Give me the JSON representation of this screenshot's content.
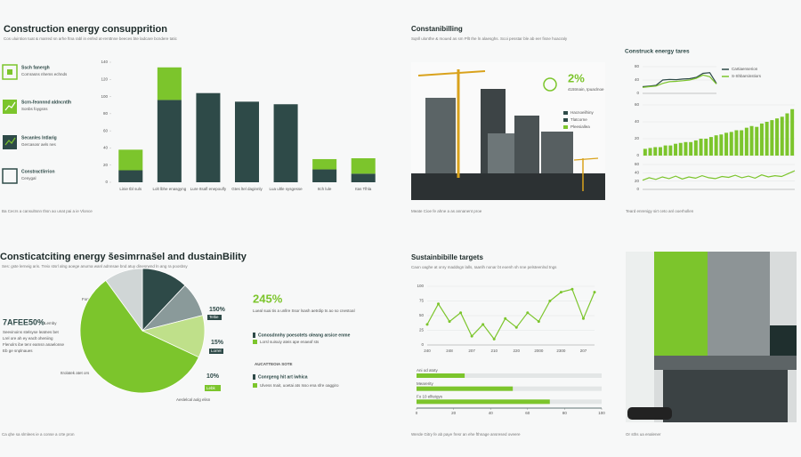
{
  "top_left": {
    "title": "Construction energy consupprition",
    "subtitle": "Cos uluintion tuat & marred sn arhe ftna rabl in enfed at-renttnne beeces bte ladcare bcndere tatic",
    "items": [
      {
        "title": "Ssch fanergh",
        "text": "Cornrasns nhems echnds"
      },
      {
        "title": "Scrn-feonnnd aldncntlh",
        "text": "Sonbs foygsns"
      },
      {
        "title": "Secanles Intlarig",
        "text": "Gercasosr aels nes"
      },
      {
        "title": "Constractlirrion",
        "text": "Cenygal"
      }
    ],
    "caption": "Ba Cecrs a cansultsnn thsn ao unat pai a ie Vlonce"
  },
  "top_middle": {
    "title": "Constanibilling",
    "subtitle": "Sqnll ulonthe & moued as sm Pllt Ihe ln alaesghs. Scoi pesstar ble ab eer fisne hoacraly",
    "stat": "2%",
    "stat_text": "415tmain, Ipuaclnoe",
    "legend": [
      "Hacnoeilhiny",
      "Tlatcorne",
      "Pleesiallea"
    ],
    "caption": "Meate Cioe fe ahne a as annanent proe"
  },
  "top_right": {
    "title": "Construck energy tares",
    "caption": "Teard enrenigy sirt ceto anl ooerhollen"
  },
  "middle_left": {
    "title": "Consticatciting energy šesimrnašel and dustainBility",
    "subtitle": "Ses: gste lerneig aris. Treix stsrl alng aoege anurna wanl adnnsae bnd atuy dinesrwnd ln ang ra poosbsy",
    "stat": "7AFEE50%",
    "stat_label": "Lemby",
    "notes": [
      "Seevinoins stelsyse leatnes bet",
      "Lrel ore ah ey eaclt oheniing",
      "Flenolrs ibe tenr eamsn anaelonse",
      "Eb ge snplnaues"
    ],
    "slice_labels": [
      "Bfternaclogy",
      "Fonuiee-brsi",
      "Secanet ats",
      "Itrolatek atet ors",
      "Aeslelcal aolg elisn"
    ],
    "side_stats": [
      "150%",
      "15%",
      "10%"
    ],
    "side_texts": [
      "Teltie",
      "Lorrel",
      "Lebk"
    ],
    "highlight": "245%",
    "highlight_text": "Lueal suai tis a unllre Ssor lsash aetrdip ts ao so cnestoal",
    "list": [
      {
        "title": "Conosdnnhy poesotets oleang arsice enme",
        "text": "Lorsl suisuiy ateis ape enaeaf sts"
      },
      {
        "title": "Conrgeng hit art iwhica",
        "text": "Ulvess Inait, uoetai ats Isso ena sfre oaggiro"
      }
    ],
    "subhead": "AUCATTEOIA SOTE",
    "caption": "Ca qhe sa slmlees ie a conse a crte pron"
  },
  "middle_right": {
    "title": "Sustainbibille targets",
    "subtitle": "Caon oaghe at onry maddsgn lalls, Iaanlh nonar bt eoenh sh nne pelsteenlnd tngs",
    "caption": "Werde Gitry fe ab paye fresr an ehe fthnage ansresed oveere"
  },
  "bottom_right": {
    "caption": "Or sths ua enalener"
  },
  "chart_data": [
    {
      "type": "bar",
      "stacked": true,
      "categories": [
        "Linie tbl suls",
        "Lolt lbhe enasgyng",
        "Lure Itsafl enepoulfy",
        "Gtes ltel daginnly",
        "Lua ultle sysgesse",
        "Itch lule",
        "Itas Tlhla"
      ],
      "series": [
        {
          "color": "#2e4a48",
          "values": [
            14,
            96,
            104,
            94,
            91,
            15,
            10
          ]
        },
        {
          "color": "#7cc52c",
          "values": [
            24,
            38,
            0,
            0,
            0,
            12,
            18
          ]
        }
      ],
      "ylim": [
        0,
        140
      ],
      "yticks": [
        0,
        20,
        40,
        60,
        80,
        100,
        120,
        140
      ],
      "grid": false
    },
    {
      "type": "line",
      "categories": [
        null,
        null,
        null,
        null,
        null,
        null,
        null,
        null,
        null,
        null,
        null,
        null
      ],
      "series": [
        {
          "name": "Cartiaenserion",
          "color": "#2e4a48",
          "values": [
            20,
            22,
            24,
            40,
            42,
            41,
            43,
            44,
            48,
            60,
            62,
            30
          ]
        },
        {
          "name": "S-Shbarsinstiors",
          "color": "#7cc52c",
          "values": [
            18,
            20,
            22,
            30,
            35,
            36,
            38,
            40,
            45,
            55,
            50,
            28
          ]
        }
      ],
      "ylim": [
        0,
        80
      ],
      "yticks": [
        0,
        40,
        80
      ],
      "grid": true,
      "legend": "right"
    },
    {
      "type": "bar",
      "stacked": false,
      "categories": [
        null,
        null,
        null,
        null,
        null,
        null,
        null,
        null,
        null,
        null,
        null,
        null,
        null,
        null,
        null,
        null,
        null,
        null,
        null,
        null,
        null,
        null,
        null,
        null,
        null,
        null,
        null,
        null,
        null,
        null
      ],
      "series": [
        {
          "color": "#7cc52c",
          "values": [
            8,
            9,
            10,
            10,
            12,
            12,
            14,
            15,
            16,
            16,
            18,
            20,
            20,
            22,
            24,
            25,
            27,
            28,
            30,
            30,
            33,
            35,
            34,
            38,
            40,
            42,
            44,
            46,
            50,
            55
          ]
        }
      ],
      "ylim": [
        0,
        60
      ],
      "yticks": [
        0,
        20,
        40,
        60
      ],
      "grid": true
    },
    {
      "type": "line",
      "categories": [
        null,
        null,
        null,
        null,
        null,
        null,
        null,
        null,
        null,
        null,
        null,
        null,
        null,
        null,
        null,
        null,
        null,
        null,
        null,
        null,
        null,
        null,
        null,
        null
      ],
      "series": [
        {
          "color": "#7cc52c",
          "values": [
            22,
            28,
            24,
            30,
            26,
            32,
            25,
            30,
            27,
            33,
            28,
            26,
            31,
            29,
            34,
            28,
            32,
            27,
            35,
            30,
            33,
            31,
            38,
            45
          ]
        }
      ],
      "ylim": [
        0,
        60
      ],
      "yticks": [
        0,
        20,
        40,
        60
      ],
      "grid": true
    },
    {
      "type": "pie",
      "values": [
        12,
        9,
        11,
        58,
        10
      ],
      "colors": [
        "#2e4a48",
        "#8a9a9a",
        "#bfe08a",
        "#7cc52c",
        "#d0d6d6"
      ]
    },
    {
      "type": "line",
      "categories": [
        "240",
        null,
        "248",
        null,
        "207",
        null,
        "210",
        null,
        "220",
        null,
        "2000",
        null,
        "2300",
        null,
        "207",
        null
      ],
      "series": [
        {
          "color": "#7cc52c",
          "values": [
            35,
            70,
            40,
            55,
            15,
            35,
            10,
            45,
            30,
            55,
            40,
            75,
            90,
            95,
            45,
            90
          ]
        }
      ],
      "ylim": [
        0,
        100
      ],
      "yticks": [
        0,
        25,
        50,
        75,
        100
      ],
      "grid": true,
      "markers": true
    },
    {
      "type": "bar",
      "orientation": "horizontal",
      "categories": [
        "Ani od atoty",
        "Mearerity",
        "Fo 10 ellteigys"
      ],
      "series": [
        {
          "color": "#7cc52c",
          "values": [
            26,
            52,
            72
          ]
        }
      ],
      "xlim": [
        0,
        100
      ],
      "xticks": [
        0,
        20,
        40,
        60,
        80,
        100
      ],
      "grid": false
    }
  ]
}
